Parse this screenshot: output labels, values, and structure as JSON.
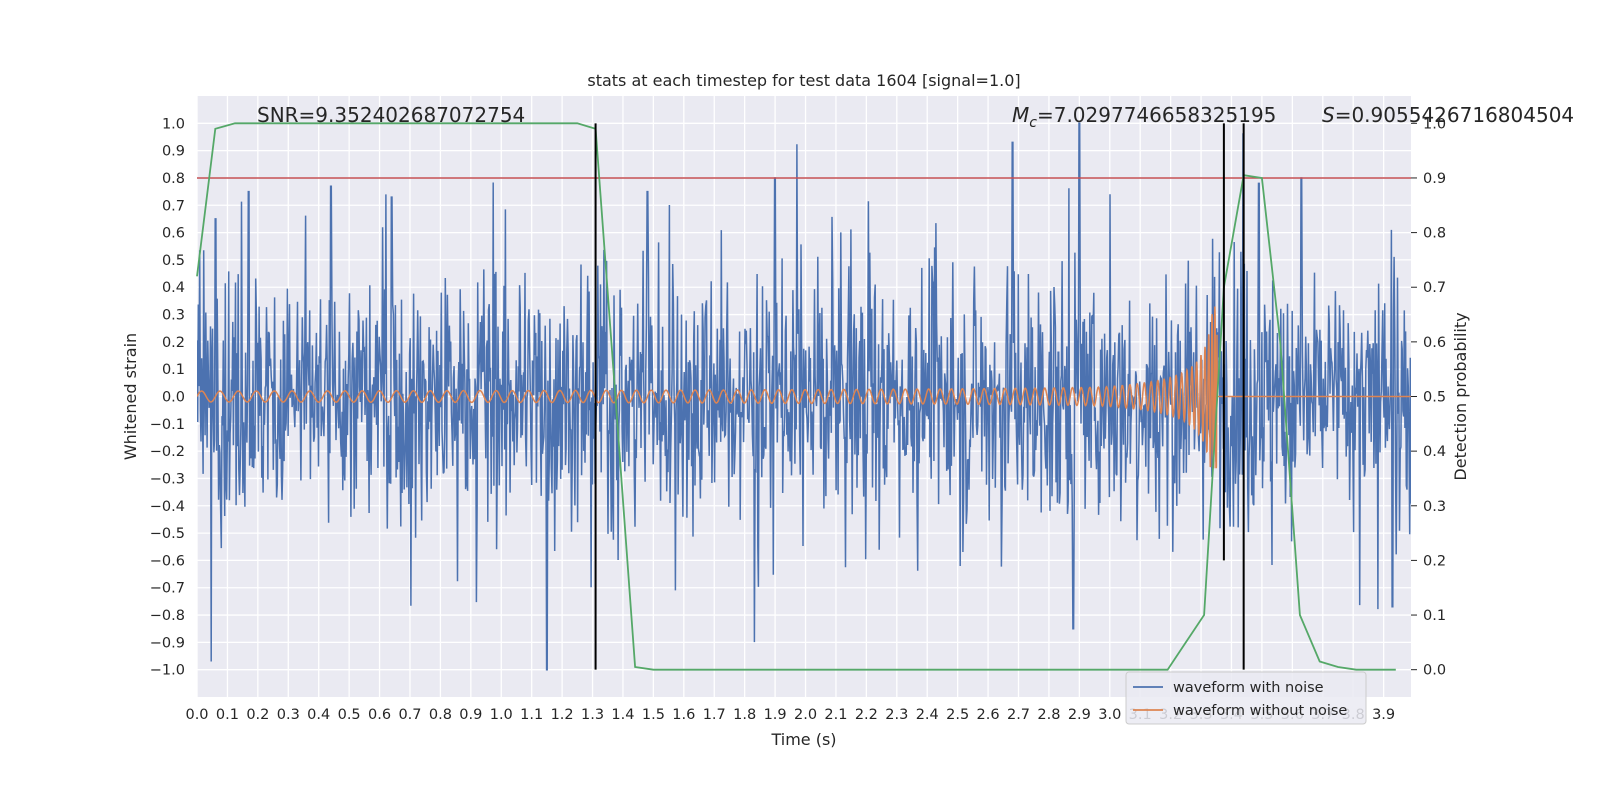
{
  "chart_data": {
    "type": "line",
    "title": "stats at each timestep for test data 1604 [signal=1.0]",
    "xlabel": "Time (s)",
    "ylabel_left": "Whitened strain",
    "ylabel_right": "Detection probability",
    "xlim": [
      0.0,
      3.99
    ],
    "ylim_left": [
      -1.1,
      1.1
    ],
    "ylim_right": [
      -0.05,
      1.05
    ],
    "x_ticks": [
      "0.0",
      "0.1",
      "0.2",
      "0.3",
      "0.4",
      "0.5",
      "0.6",
      "0.7",
      "0.8",
      "0.9",
      "1.0",
      "1.1",
      "1.2",
      "1.3",
      "1.4",
      "1.5",
      "1.6",
      "1.7",
      "1.8",
      "1.9",
      "2.0",
      "2.1",
      "2.2",
      "2.3",
      "2.4",
      "2.5",
      "2.6",
      "2.7",
      "2.8",
      "2.9",
      "3.0",
      "3.1",
      "3.2",
      "3.3",
      "3.4",
      "3.5",
      "3.6",
      "3.7",
      "3.8",
      "3.9"
    ],
    "y_ticks_left": [
      "1.0",
      "0.9",
      "0.8",
      "0.7",
      "0.6",
      "0.5",
      "0.4",
      "0.3",
      "0.2",
      "0.1",
      "0.0",
      "−0.1",
      "−0.2",
      "−0.3",
      "−0.4",
      "−0.5",
      "−0.6",
      "−0.7",
      "−0.8",
      "−0.9",
      "−1.0"
    ],
    "y_ticks_right": [
      "1.0",
      "0.9",
      "0.8",
      "0.7",
      "0.6",
      "0.5",
      "0.4",
      "0.3",
      "0.2",
      "0.1",
      "0.0"
    ],
    "annotations": {
      "snr": "SNR=9.352402687072754",
      "mc_symbol": "M",
      "mc_sub": "c",
      "mc_value": "=7.0297746658325195",
      "s_symbol": "S",
      "s_value": "=0.9055426716804504"
    },
    "threshold": {
      "axis": "right",
      "value": 0.9,
      "color": "#c44e52"
    },
    "vertical_lines": [
      {
        "x": 1.31,
        "ymin": -1.0,
        "ymax": 1.0
      },
      {
        "x": 3.375,
        "ymin": -0.6,
        "ymax": 1.0
      },
      {
        "x": 3.44,
        "ymin": -1.0,
        "ymax": 1.0
      }
    ],
    "series": [
      {
        "name": "waveform with noise",
        "color": "#4c72b0",
        "axis": "left",
        "kind": "noise",
        "amplitude_envelope": 0.3,
        "peak_values": [
          {
            "x": 0.06,
            "y": 0.65
          },
          {
            "x": 0.17,
            "y": 0.75
          },
          {
            "x": 0.44,
            "y": 0.77
          },
          {
            "x": 0.64,
            "y": 0.73
          },
          {
            "x": 1.15,
            "y": -1.0
          },
          {
            "x": 1.48,
            "y": 0.75
          },
          {
            "x": 1.9,
            "y": 0.8
          },
          {
            "x": 2.68,
            "y": 0.93
          },
          {
            "x": 2.9,
            "y": 1.0
          },
          {
            "x": 2.88,
            "y": -0.85
          },
          {
            "x": 3.49,
            "y": 0.78
          },
          {
            "x": 3.63,
            "y": 0.8
          },
          {
            "x": 3.93,
            "y": -0.77
          }
        ]
      },
      {
        "name": "waveform without noise",
        "color": "#dd8452",
        "axis": "left",
        "kind": "chirp",
        "merger_time": 3.355,
        "start_amplitude": 0.02,
        "peak_amplitude": 0.33,
        "min_value": -0.26
      },
      {
        "name": "detection probability",
        "color": "#55a868",
        "axis": "right",
        "x": [
          0.0,
          0.06,
          0.125,
          0.19,
          1.25,
          1.31,
          1.375,
          1.44,
          1.5,
          1.56,
          3.19,
          3.25,
          3.31,
          3.375,
          3.44,
          3.5,
          3.56,
          3.625,
          3.69,
          3.75,
          3.81,
          3.875,
          3.94
        ],
        "y": [
          0.72,
          0.99,
          1.0,
          1.0,
          1.0,
          0.99,
          0.5,
          0.005,
          0.0,
          0.0,
          0.0,
          0.05,
          0.1,
          0.7,
          0.905,
          0.9,
          0.6,
          0.1,
          0.015,
          0.005,
          0.0,
          0.0,
          0.0
        ]
      }
    ],
    "legend": {
      "position": "lower-right",
      "entries": [
        {
          "label": "waveform with noise",
          "color": "#4c72b0"
        },
        {
          "label": "waveform without noise",
          "color": "#dd8452"
        }
      ]
    },
    "grid": true,
    "background": "#eaeaf2"
  }
}
